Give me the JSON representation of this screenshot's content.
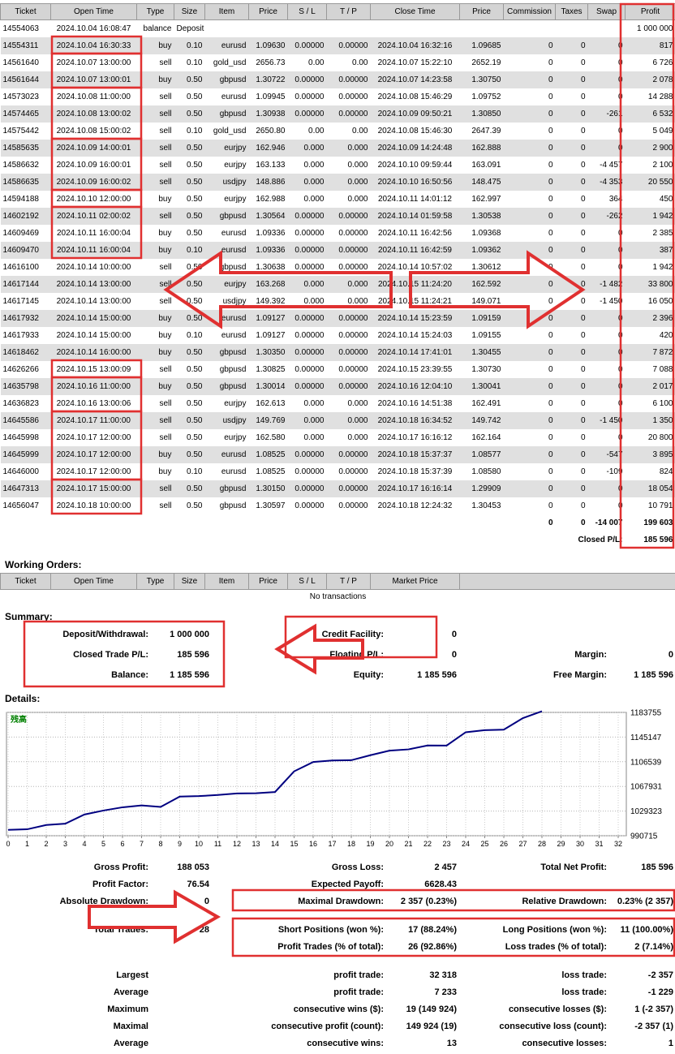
{
  "colors": {
    "annotation_red": "#e03030",
    "table_header_gray": "#d4d4d4",
    "alt_row_gray": "#e0e0e0",
    "balance_line_navy": "#000080",
    "chart_label_green": "#008000"
  },
  "trades_table": {
    "headers": [
      "Ticket",
      "Open Time",
      "Type",
      "Size",
      "Item",
      "Price",
      "S / L",
      "T / P",
      "Close Time",
      "Price",
      "Commission",
      "Taxes",
      "Swap",
      "Profit"
    ],
    "balance_row": {
      "ticket": "14554063",
      "open_time": "2024.10.04 16:08:47",
      "type": "balance",
      "comment": "Deposit",
      "profit": "1 000 000"
    },
    "rows": [
      [
        "14554311",
        "2024.10.04 16:30:33",
        "buy",
        "0.10",
        "eurusd",
        "1.09630",
        "0.00000",
        "0.00000",
        "2024.10.04 16:32:16",
        "1.09685",
        "0",
        "0",
        "0",
        "817"
      ],
      [
        "14561640",
        "2024.10.07 13:00:00",
        "sell",
        "0.10",
        "gold_usd",
        "2656.73",
        "0.00",
        "0.00",
        "2024.10.07 15:22:10",
        "2652.19",
        "0",
        "0",
        "0",
        "6 726"
      ],
      [
        "14561644",
        "2024.10.07 13:00:01",
        "buy",
        "0.50",
        "gbpusd",
        "1.30722",
        "0.00000",
        "0.00000",
        "2024.10.07 14:23:58",
        "1.30750",
        "0",
        "0",
        "0",
        "2 078"
      ],
      [
        "14573023",
        "2024.10.08 11:00:00",
        "sell",
        "0.50",
        "eurusd",
        "1.09945",
        "0.00000",
        "0.00000",
        "2024.10.08 15:46:29",
        "1.09752",
        "0",
        "0",
        "0",
        "14 288"
      ],
      [
        "14574465",
        "2024.10.08 13:00:02",
        "sell",
        "0.50",
        "gbpusd",
        "1.30938",
        "0.00000",
        "0.00000",
        "2024.10.09 09:50:21",
        "1.30850",
        "0",
        "0",
        "-261",
        "6 532"
      ],
      [
        "14575442",
        "2024.10.08 15:00:02",
        "sell",
        "0.10",
        "gold_usd",
        "2650.80",
        "0.00",
        "0.00",
        "2024.10.08 15:46:30",
        "2647.39",
        "0",
        "0",
        "0",
        "5 049"
      ],
      [
        "14585635",
        "2024.10.09 14:00:01",
        "sell",
        "0.50",
        "eurjpy",
        "162.946",
        "0.000",
        "0.000",
        "2024.10.09 14:24:48",
        "162.888",
        "0",
        "0",
        "0",
        "2 900"
      ],
      [
        "14586632",
        "2024.10.09 16:00:01",
        "sell",
        "0.50",
        "eurjpy",
        "163.133",
        "0.000",
        "0.000",
        "2024.10.10 09:59:44",
        "163.091",
        "0",
        "0",
        "-4 457",
        "2 100"
      ],
      [
        "14586635",
        "2024.10.09 16:00:02",
        "sell",
        "0.50",
        "usdjpy",
        "148.886",
        "0.000",
        "0.000",
        "2024.10.10 16:50:56",
        "148.475",
        "0",
        "0",
        "-4 353",
        "20 550"
      ],
      [
        "14594188",
        "2024.10.10 12:00:00",
        "buy",
        "0.50",
        "eurjpy",
        "162.988",
        "0.000",
        "0.000",
        "2024.10.11 14:01:12",
        "162.997",
        "0",
        "0",
        "364",
        "450"
      ],
      [
        "14602192",
        "2024.10.11 02:00:02",
        "sell",
        "0.50",
        "gbpusd",
        "1.30564",
        "0.00000",
        "0.00000",
        "2024.10.14 01:59:58",
        "1.30538",
        "0",
        "0",
        "-262",
        "1 942"
      ],
      [
        "14609469",
        "2024.10.11 16:00:04",
        "buy",
        "0.50",
        "eurusd",
        "1.09336",
        "0.00000",
        "0.00000",
        "2024.10.11 16:42:56",
        "1.09368",
        "0",
        "0",
        "0",
        "2 385"
      ],
      [
        "14609470",
        "2024.10.11 16:00:04",
        "buy",
        "0.10",
        "eurusd",
        "1.09336",
        "0.00000",
        "0.00000",
        "2024.10.11 16:42:59",
        "1.09362",
        "0",
        "0",
        "0",
        "387"
      ],
      [
        "14616100",
        "2024.10.14 10:00:00",
        "sell",
        "0.50",
        "gbpusd",
        "1.30638",
        "0.00000",
        "0.00000",
        "2024.10.14 10:57:02",
        "1.30612",
        "0",
        "0",
        "0",
        "1 942"
      ],
      [
        "14617144",
        "2024.10.14 13:00:00",
        "sell",
        "0.50",
        "eurjpy",
        "163.268",
        "0.000",
        "0.000",
        "2024.10.15 11:24:20",
        "162.592",
        "0",
        "0",
        "-1 482",
        "33 800"
      ],
      [
        "14617145",
        "2024.10.14 13:00:00",
        "sell",
        "0.50",
        "usdjpy",
        "149.392",
        "0.000",
        "0.000",
        "2024.10.15 11:24:21",
        "149.071",
        "0",
        "0",
        "-1 450",
        "16 050"
      ],
      [
        "14617932",
        "2024.10.14 15:00:00",
        "buy",
        "0.50",
        "eurusd",
        "1.09127",
        "0.00000",
        "0.00000",
        "2024.10.14 15:23:59",
        "1.09159",
        "0",
        "0",
        "0",
        "2 396"
      ],
      [
        "14617933",
        "2024.10.14 15:00:00",
        "buy",
        "0.10",
        "eurusd",
        "1.09127",
        "0.00000",
        "0.00000",
        "2024.10.14 15:24:03",
        "1.09155",
        "0",
        "0",
        "0",
        "420"
      ],
      [
        "14618462",
        "2024.10.14 16:00:00",
        "buy",
        "0.50",
        "gbpusd",
        "1.30350",
        "0.00000",
        "0.00000",
        "2024.10.14 17:41:01",
        "1.30455",
        "0",
        "0",
        "0",
        "7 872"
      ],
      [
        "14626266",
        "2024.10.15 13:00:09",
        "sell",
        "0.50",
        "gbpusd",
        "1.30825",
        "0.00000",
        "0.00000",
        "2024.10.15 23:39:55",
        "1.30730",
        "0",
        "0",
        "0",
        "7 088"
      ],
      [
        "14635798",
        "2024.10.16 11:00:00",
        "buy",
        "0.50",
        "gbpusd",
        "1.30014",
        "0.00000",
        "0.00000",
        "2024.10.16 12:04:10",
        "1.30041",
        "0",
        "0",
        "0",
        "2 017"
      ],
      [
        "14636823",
        "2024.10.16 13:00:06",
        "sell",
        "0.50",
        "eurjpy",
        "162.613",
        "0.000",
        "0.000",
        "2024.10.16 14:51:38",
        "162.491",
        "0",
        "0",
        "0",
        "6 100"
      ],
      [
        "14645586",
        "2024.10.17 11:00:00",
        "sell",
        "0.50",
        "usdjpy",
        "149.769",
        "0.000",
        "0.000",
        "2024.10.18 16:34:52",
        "149.742",
        "0",
        "0",
        "-1 450",
        "1 350"
      ],
      [
        "14645998",
        "2024.10.17 12:00:00",
        "sell",
        "0.50",
        "eurjpy",
        "162.580",
        "0.000",
        "0.000",
        "2024.10.17 16:16:12",
        "162.164",
        "0",
        "0",
        "0",
        "20 800"
      ],
      [
        "14645999",
        "2024.10.17 12:00:00",
        "buy",
        "0.50",
        "eurusd",
        "1.08525",
        "0.00000",
        "0.00000",
        "2024.10.18 15:37:37",
        "1.08577",
        "0",
        "0",
        "-547",
        "3 895"
      ],
      [
        "14646000",
        "2024.10.17 12:00:00",
        "buy",
        "0.10",
        "eurusd",
        "1.08525",
        "0.00000",
        "0.00000",
        "2024.10.18 15:37:39",
        "1.08580",
        "0",
        "0",
        "-109",
        "824"
      ],
      [
        "14647313",
        "2024.10.17 15:00:00",
        "sell",
        "0.50",
        "gbpusd",
        "1.30150",
        "0.00000",
        "0.00000",
        "2024.10.17 16:16:14",
        "1.29909",
        "0",
        "0",
        "0",
        "18 054"
      ],
      [
        "14656047",
        "2024.10.18 10:00:00",
        "sell",
        "0.50",
        "gbpusd",
        "1.30597",
        "0.00000",
        "0.00000",
        "2024.10.18 12:24:32",
        "1.30453",
        "0",
        "0",
        "0",
        "10 791"
      ]
    ],
    "totals": {
      "commission": "0",
      "taxes": "0",
      "swap": "-14 007",
      "profit": "199 603"
    },
    "closed_pl_label": "Closed P/L:",
    "closed_pl_value": "185 596"
  },
  "working_orders": {
    "title": "Working Orders:",
    "headers": [
      "Ticket",
      "Open Time",
      "Type",
      "Size",
      "Item",
      "Price",
      "S / L",
      "T / P",
      "Market Price"
    ],
    "empty_text": "No transactions"
  },
  "summary": {
    "title": "Summary:",
    "rows": [
      [
        "Deposit/Withdrawal:",
        "1 000 000",
        "Credit Facility:",
        "0",
        "",
        ""
      ],
      [
        "Closed Trade P/L:",
        "185 596",
        "Floating P/L:",
        "0",
        "Margin:",
        "0"
      ],
      [
        "Balance:",
        "1 185 596",
        "Equity:",
        "1 185 596",
        "Free Margin:",
        "1 185 596"
      ]
    ]
  },
  "details": {
    "title": "Details:",
    "chart_data": {
      "type": "line",
      "title": "残高",
      "title_color": "#008000",
      "line_color": "#000080",
      "balance": [
        1000000,
        1000817,
        1007543,
        1009621,
        1023909,
        1030180,
        1035229,
        1038129,
        1035772,
        1051969,
        1052783,
        1054463,
        1056848,
        1057235,
        1059177,
        1091495,
        1106095,
        1108491,
        1108911,
        1116783,
        1123871,
        1125888,
        1131988,
        1131888,
        1152688,
        1156036,
        1156751,
        1174805,
        1185596
      ],
      "y_ticks": [
        990715,
        1029323,
        1067931,
        1106539,
        1145147,
        1183755
      ],
      "x_ticks": [
        0,
        1,
        2,
        3,
        4,
        5,
        6,
        7,
        8,
        9,
        10,
        11,
        12,
        13,
        14,
        15,
        16,
        17,
        18,
        19,
        20,
        21,
        22,
        23,
        24,
        25,
        26,
        27,
        28,
        29,
        30,
        31,
        32
      ],
      "ylim": [
        990715,
        1183755
      ],
      "xlim": [
        0,
        32
      ],
      "grid": true,
      "legend": false
    },
    "stats_rows": [
      [
        "Gross Profit:",
        "188 053",
        "Gross Loss:",
        "2 457",
        "Total Net Profit:",
        "185 596"
      ],
      [
        "Profit Factor:",
        "76.54",
        "Expected Payoff:",
        "6628.43",
        "",
        ""
      ],
      [
        "Absolute Drawdown:",
        "0",
        "Maximal Drawdown:",
        "2 357 (0.23%)",
        "Relative Drawdown:",
        "0.23% (2 357)"
      ],
      "spacer",
      [
        "Total Trades:",
        "28",
        "Short Positions (won %):",
        "17 (88.24%)",
        "Long Positions (won %):",
        "11 (100.00%)"
      ],
      [
        "",
        "",
        "Profit Trades (% of total):",
        "26 (92.86%)",
        "Loss trades (% of total):",
        "2 (7.14%)"
      ],
      "spacer",
      [
        "Largest",
        "",
        "profit trade:",
        "32 318",
        "loss trade:",
        "-2 357"
      ],
      [
        "Average",
        "",
        "profit trade:",
        "7 233",
        "loss trade:",
        "-1 229"
      ],
      [
        "Maximum",
        "",
        "consecutive wins ($):",
        "19 (149 924)",
        "consecutive losses ($):",
        "1 (-2 357)"
      ],
      [
        "Maximal",
        "",
        "consecutive profit (count):",
        "149 924 (19)",
        "consecutive loss (count):",
        "-2 357 (1)"
      ],
      [
        "Average",
        "",
        "consecutive wins:",
        "13",
        "consecutive losses:",
        "1"
      ]
    ]
  }
}
